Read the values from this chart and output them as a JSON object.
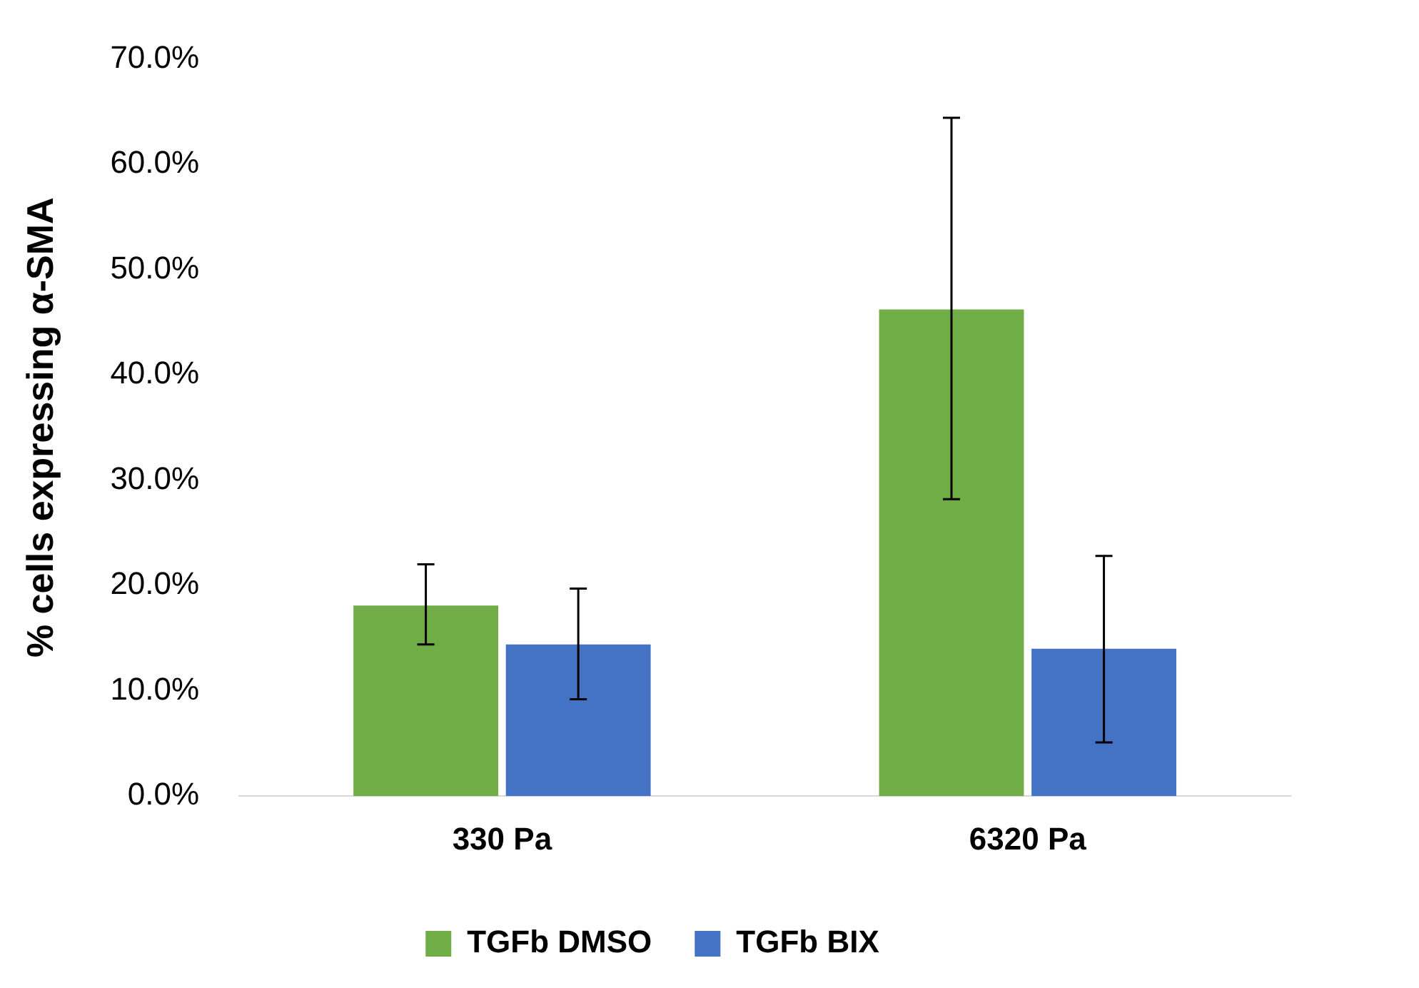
{
  "chart_data": {
    "type": "bar",
    "ylabel": "% cells expressing α-SMA",
    "categories": [
      "330 Pa",
      "6320 Pa"
    ],
    "series": [
      {
        "name": "TGFb DMSO",
        "color": "#70ad47",
        "values": [
          18.1,
          46.2
        ],
        "errors": [
          [
            14.4,
            22.0
          ],
          [
            28.2,
            64.4
          ]
        ]
      },
      {
        "name": "TGFb BIX",
        "color": "#4472c4",
        "values": [
          14.4,
          14.0
        ],
        "errors": [
          [
            9.2,
            19.7
          ],
          [
            5.1,
            22.8
          ]
        ]
      }
    ],
    "ylim": [
      0,
      70
    ],
    "yticks": [
      {
        "value": 0,
        "label": "0.0%"
      },
      {
        "value": 10,
        "label": "10.0%"
      },
      {
        "value": 20,
        "label": "20.0%"
      },
      {
        "value": 30,
        "label": "30.0%"
      },
      {
        "value": 40,
        "label": "40.0%"
      },
      {
        "value": 50,
        "label": "50.0%"
      },
      {
        "value": 60,
        "label": "60.0%"
      },
      {
        "value": 70,
        "label": "70.0%"
      }
    ],
    "grid": false,
    "legend": "bottom"
  }
}
